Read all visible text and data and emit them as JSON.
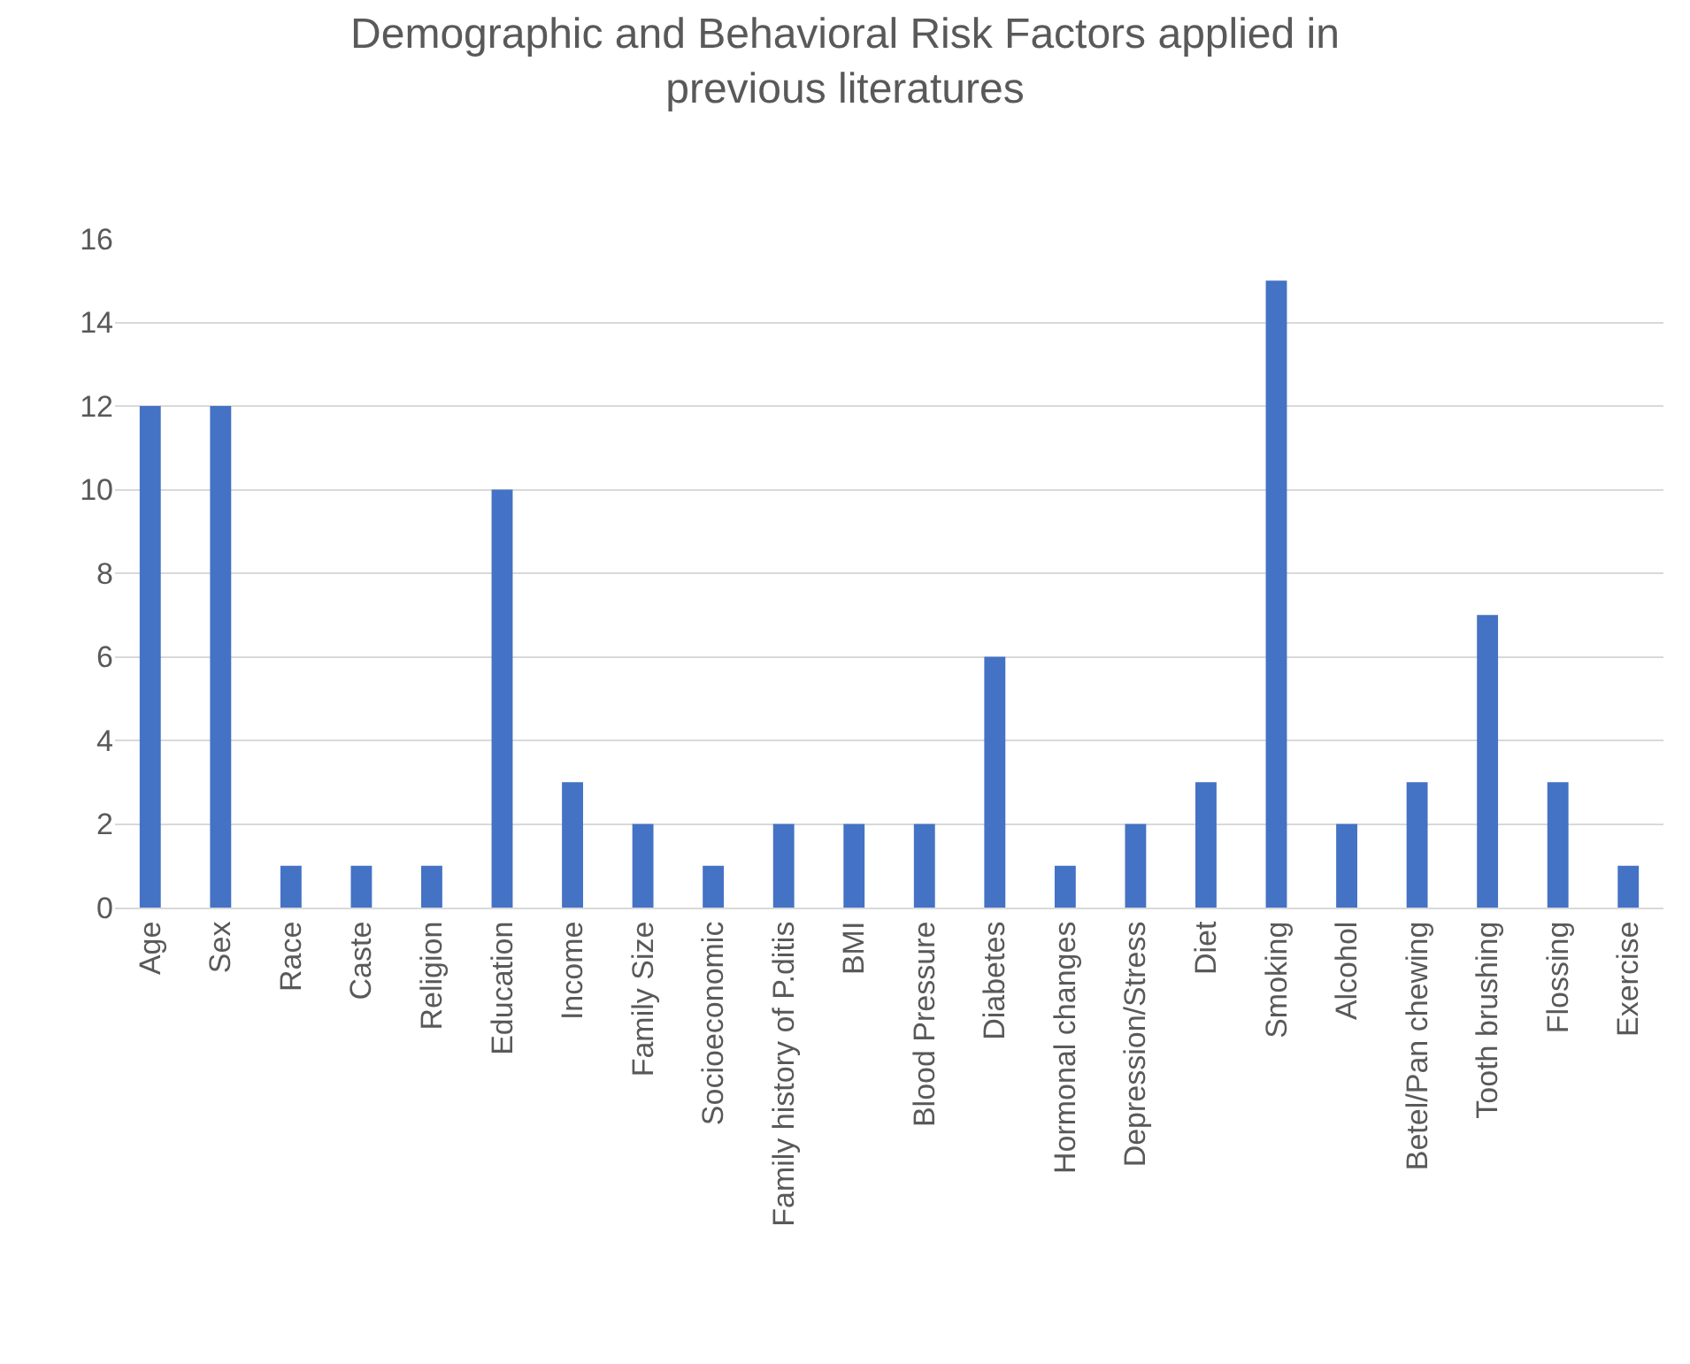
{
  "chart_data": {
    "type": "bar",
    "title": "Demographic and Behavioral Risk Factors applied in previous literatures",
    "categories": [
      "Age",
      "Sex",
      "Race",
      "Caste",
      "Religion",
      "Education",
      "Income",
      "Family Size",
      "Socioeconomic",
      "Family history of P.ditis",
      "BMI",
      "Blood Pressure",
      "Diabetes",
      "Hormonal changes",
      "Depression/Stress",
      "Diet",
      "Smoking",
      "Alcohol",
      "Betel/Pan chewing",
      "Tooth brushing",
      "Flossing",
      "Exercise"
    ],
    "values": [
      12,
      12,
      1,
      1,
      1,
      10,
      3,
      2,
      1,
      2,
      2,
      2,
      6,
      1,
      2,
      3,
      15,
      2,
      3,
      7,
      3,
      1
    ],
    "color": "#4472c4",
    "ylim": [
      0,
      16
    ],
    "yticks": [
      0,
      2,
      4,
      6,
      8,
      10,
      12,
      14,
      16
    ],
    "grid": "y"
  }
}
